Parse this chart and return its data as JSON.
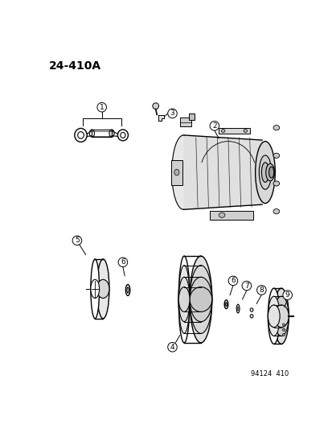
{
  "title": "24-410A",
  "footer": "94124  410",
  "bg_color": "#ffffff",
  "fg_color": "#000000",
  "fig_width": 4.14,
  "fig_height": 5.33,
  "dpi": 100
}
